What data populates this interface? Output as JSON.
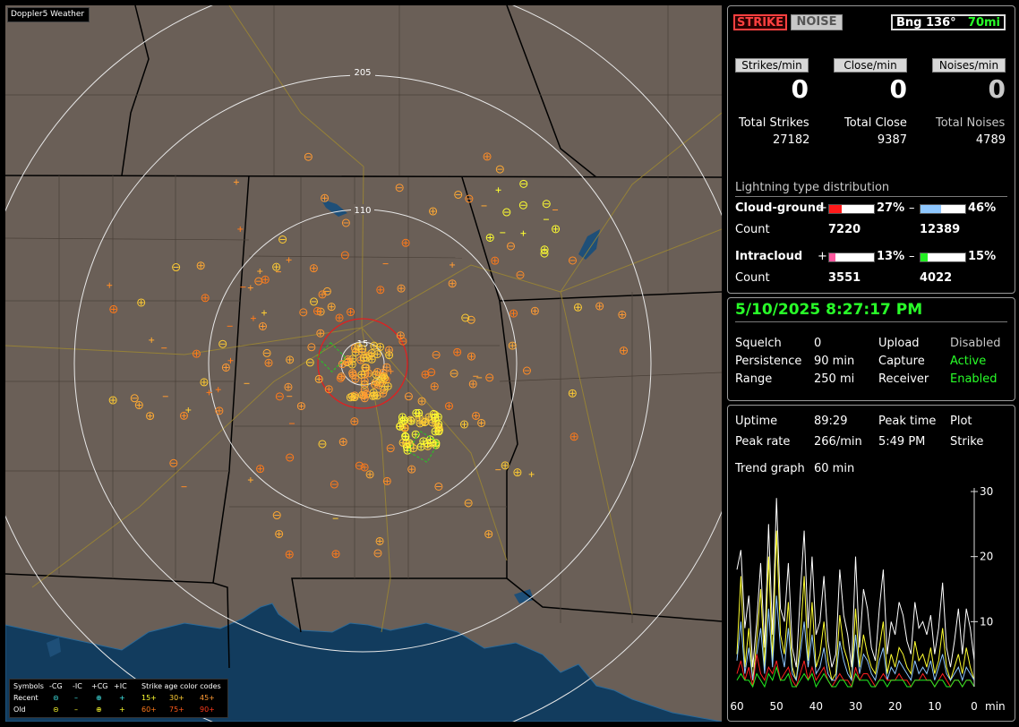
{
  "app": {
    "title": "Doppler5 Weather"
  },
  "map": {
    "range_rings": [
      "205",
      "110",
      "15"
    ],
    "legend": {
      "header": [
        "Symbols",
        "-CG",
        "-IC",
        "+CG",
        "+IC"
      ],
      "age_title": "Strike age color codes",
      "recent_label": "Recent",
      "old_label": "Old",
      "age_codes": [
        "15+",
        "30+",
        "45+",
        "60+",
        "75+",
        "90+"
      ],
      "age_colors": [
        "#ffff30",
        "#ffcc33",
        "#ff9a33",
        "#ff7a1a",
        "#ff5a1a",
        "#ff3a1a"
      ]
    },
    "colors": {
      "land": "#6a5f57",
      "water": "#123c5e",
      "ring": "#e8e8e8",
      "close_ring": "#e02020"
    }
  },
  "stats_panel": {
    "strike_button": "STRIKE",
    "noise_button": "NOISE",
    "bearing_label": "Bng 136°",
    "range_label": "70mi",
    "rates": [
      {
        "label": "Strikes/min",
        "value": "0"
      },
      {
        "label": "Close/min",
        "value": "0"
      },
      {
        "label": "Noises/min",
        "value": "0"
      }
    ],
    "totals": [
      {
        "label": "Total Strikes",
        "value": "27182"
      },
      {
        "label": "Total Close",
        "value": "9387"
      },
      {
        "label": "Total Noises",
        "value": "4789"
      }
    ],
    "distribution_title": "Lightning type distribution",
    "cloud_ground": {
      "label": "Cloud-ground",
      "count_label": "Count",
      "pos_sign": "+",
      "pos_pct": "27%",
      "pos_fraction": 0.27,
      "pos_count": "7220",
      "pos_color": "#ff1a1a",
      "neg_sign": "–",
      "neg_pct": "46%",
      "neg_fraction": 0.46,
      "neg_count": "12389",
      "neg_color": "#8fc8ff"
    },
    "intracloud": {
      "label": "Intracloud",
      "count_label": "Count",
      "pos_sign": "+",
      "pos_pct": "13%",
      "pos_fraction": 0.13,
      "pos_count": "3551",
      "pos_color": "#ff5aa0",
      "neg_sign": "–",
      "neg_pct": "15%",
      "neg_fraction": 0.15,
      "neg_count": "4022",
      "neg_color": "#22ee22"
    }
  },
  "status_panel": {
    "datetime": "5/10/2025 8:27:17 PM",
    "rows": [
      {
        "k1": "Squelch",
        "v1": "0",
        "k2": "Upload",
        "v2": "Disabled"
      },
      {
        "k1": "Persistence",
        "v1": "90 min",
        "k2": "Capture",
        "v2": "Active"
      },
      {
        "k1": "Range",
        "v1": "250 mi",
        "k2": "Receiver",
        "v2": "Enabled"
      }
    ]
  },
  "trend_panel": {
    "uptime_label": "Uptime",
    "uptime": "89:29",
    "peak_time_label": "Peak time",
    "peak_time": "5:49 PM",
    "plot_label": "Plot",
    "plot": "Strike",
    "peak_rate_label": "Peak rate",
    "peak_rate": "266/min",
    "trend_label": "Trend graph",
    "trend_value": "60 min",
    "y_ticks": [
      "30",
      "20",
      "10"
    ],
    "x_ticks": [
      "60",
      "50",
      "40",
      "30",
      "20",
      "10",
      "0"
    ],
    "x_unit": "min"
  },
  "chart_data": {
    "type": "line",
    "x": [
      60,
      59,
      58,
      57,
      56,
      55,
      54,
      53,
      52,
      51,
      50,
      49,
      48,
      47,
      46,
      45,
      44,
      43,
      42,
      41,
      40,
      39,
      38,
      37,
      36,
      35,
      34,
      33,
      32,
      31,
      30,
      29,
      28,
      27,
      26,
      25,
      24,
      23,
      22,
      21,
      20,
      19,
      18,
      17,
      16,
      15,
      14,
      13,
      12,
      11,
      10,
      9,
      8,
      7,
      6,
      5,
      4,
      3,
      2,
      1,
      0
    ],
    "series": [
      {
        "color": "#ffffff",
        "values": [
          18,
          21,
          9,
          14,
          3,
          10,
          19,
          6,
          25,
          8,
          29,
          12,
          10,
          19,
          6,
          3,
          14,
          24,
          9,
          20,
          8,
          10,
          17,
          7,
          3,
          5,
          18,
          11,
          8,
          3,
          20,
          6,
          15,
          12,
          6,
          4,
          12,
          18,
          5,
          10,
          8,
          13,
          11,
          7,
          5,
          13,
          9,
          10,
          8,
          11,
          5,
          9,
          16,
          6,
          3,
          7,
          12,
          5,
          12,
          9,
          4
        ]
      },
      {
        "color": "#ffff30",
        "values": [
          5,
          17,
          3,
          9,
          1,
          7,
          15,
          3,
          20,
          4,
          24,
          8,
          5,
          13,
          3,
          1,
          7,
          17,
          4,
          13,
          3,
          5,
          10,
          4,
          1,
          2,
          11,
          6,
          4,
          1,
          12,
          3,
          8,
          5,
          3,
          2,
          6,
          10,
          2,
          5,
          3,
          6,
          5,
          3,
          2,
          7,
          4,
          5,
          3,
          6,
          2,
          4,
          9,
          3,
          1,
          3,
          5,
          2,
          6,
          3,
          1
        ]
      },
      {
        "color": "#8fc8ff",
        "values": [
          4,
          10,
          2,
          6,
          1,
          5,
          9,
          2,
          12,
          3,
          14,
          6,
          3,
          9,
          2,
          1,
          5,
          10,
          3,
          8,
          2,
          3,
          6,
          2,
          1,
          1,
          7,
          4,
          2,
          1,
          8,
          2,
          5,
          4,
          2,
          1,
          4,
          6,
          1,
          3,
          2,
          4,
          3,
          2,
          1,
          4,
          2,
          3,
          2,
          4,
          1,
          3,
          5,
          2,
          1,
          2,
          3,
          1,
          3,
          2,
          1
        ]
      },
      {
        "color": "#ff2020",
        "values": [
          2,
          4,
          1,
          3,
          0,
          5,
          2,
          1,
          3,
          2,
          4,
          1,
          2,
          3,
          1,
          0,
          2,
          4,
          1,
          3,
          1,
          2,
          3,
          1,
          0,
          1,
          2,
          1,
          1,
          0,
          3,
          1,
          2,
          2,
          1,
          0,
          1,
          2,
          1,
          1,
          1,
          2,
          1,
          1,
          0,
          1,
          1,
          2,
          1,
          1,
          0,
          1,
          2,
          1,
          0,
          1,
          1,
          0,
          1,
          1,
          0
        ]
      },
      {
        "color": "#22ee22",
        "values": [
          1,
          2,
          1,
          1,
          0,
          2,
          1,
          0,
          2,
          1,
          3,
          1,
          1,
          2,
          0,
          0,
          1,
          2,
          1,
          2,
          0,
          1,
          2,
          1,
          0,
          0,
          1,
          1,
          0,
          0,
          2,
          1,
          1,
          1,
          0,
          0,
          1,
          1,
          0,
          1,
          1,
          1,
          1,
          0,
          0,
          1,
          1,
          1,
          1,
          1,
          0,
          1,
          1,
          0,
          0,
          1,
          1,
          0,
          1,
          1,
          0
        ]
      }
    ],
    "ylim": [
      0,
      30
    ],
    "xlim": [
      60,
      0
    ],
    "xlabel": "min",
    "grid": false,
    "legend": false
  }
}
